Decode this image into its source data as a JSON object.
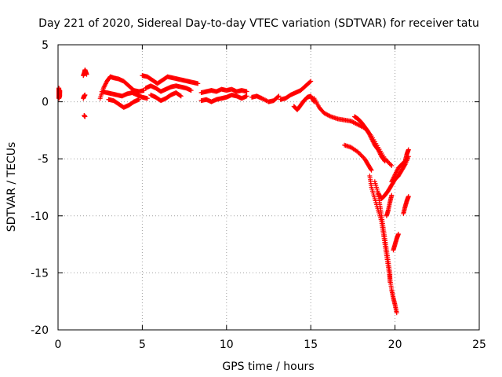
{
  "chart_data": {
    "type": "scatter",
    "title": "Day 221 of 2020, Sidereal Day-to-day VTEC variation (SDTVAR) for receiver tatu",
    "xlabel": "GPS time / hours",
    "ylabel": "SDTVAR / TECUs",
    "xlim": [
      0,
      25
    ],
    "ylim": [
      -20,
      5
    ],
    "xticks": [
      0,
      5,
      10,
      15,
      20,
      25
    ],
    "yticks": [
      5,
      0,
      -5,
      -10,
      -15,
      -20
    ],
    "grid": true,
    "marker": "plus",
    "series": [
      {
        "name": "SDTVAR",
        "color": "#ff0000",
        "segments": [
          [
            [
              0.05,
              1.2
            ],
            [
              0.05,
              0.9
            ],
            [
              0.05,
              0.6
            ],
            [
              0.05,
              0.3
            ],
            [
              0.1,
              0.5
            ],
            [
              0.1,
              0.8
            ],
            [
              0.1,
              1.0
            ]
          ],
          [
            [
              1.5,
              2.3
            ],
            [
              1.55,
              2.5
            ],
            [
              1.6,
              2.8
            ],
            [
              1.65,
              2.6
            ],
            [
              1.7,
              2.4
            ]
          ],
          [
            [
              1.5,
              0.3
            ],
            [
              1.55,
              0.5
            ],
            [
              1.6,
              0.6
            ]
          ],
          [
            [
              1.55,
              -1.2
            ],
            [
              1.6,
              -1.3
            ]
          ],
          [
            [
              2.5,
              0.3
            ],
            [
              2.7,
              1.2
            ],
            [
              2.9,
              1.8
            ],
            [
              3.1,
              2.2
            ],
            [
              3.3,
              2.1
            ],
            [
              3.6,
              2.0
            ],
            [
              3.9,
              1.8
            ],
            [
              4.2,
              1.4
            ],
            [
              4.5,
              1.0
            ],
            [
              4.8,
              0.9
            ],
            [
              5.1,
              1.0
            ]
          ],
          [
            [
              2.6,
              0.9
            ],
            [
              2.9,
              0.8
            ],
            [
              3.2,
              0.7
            ],
            [
              3.5,
              0.6
            ],
            [
              3.8,
              0.5
            ],
            [
              4.1,
              0.7
            ],
            [
              4.4,
              0.8
            ],
            [
              4.7,
              0.6
            ],
            [
              5.0,
              0.4
            ],
            [
              5.3,
              0.3
            ]
          ],
          [
            [
              3.0,
              0.2
            ],
            [
              3.3,
              0.1
            ],
            [
              3.6,
              -0.2
            ],
            [
              3.9,
              -0.5
            ],
            [
              4.2,
              -0.3
            ],
            [
              4.5,
              0.0
            ],
            [
              4.8,
              0.2
            ]
          ],
          [
            [
              5.0,
              2.3
            ],
            [
              5.3,
              2.2
            ],
            [
              5.6,
              1.9
            ],
            [
              5.9,
              1.6
            ],
            [
              6.2,
              1.9
            ],
            [
              6.5,
              2.2
            ],
            [
              6.8,
              2.1
            ],
            [
              7.1,
              2.0
            ],
            [
              7.4,
              1.9
            ],
            [
              7.7,
              1.8
            ],
            [
              8.0,
              1.7
            ],
            [
              8.3,
              1.6
            ]
          ],
          [
            [
              5.2,
              1.2
            ],
            [
              5.5,
              1.4
            ],
            [
              5.8,
              1.2
            ],
            [
              6.1,
              0.9
            ],
            [
              6.4,
              1.1
            ],
            [
              6.7,
              1.3
            ],
            [
              7.0,
              1.4
            ],
            [
              7.3,
              1.3
            ],
            [
              7.6,
              1.2
            ],
            [
              7.9,
              1.0
            ]
          ],
          [
            [
              5.5,
              0.6
            ],
            [
              5.8,
              0.4
            ],
            [
              6.1,
              0.1
            ],
            [
              6.4,
              0.3
            ],
            [
              6.7,
              0.6
            ],
            [
              7.0,
              0.8
            ],
            [
              7.3,
              0.5
            ]
          ],
          [
            [
              8.5,
              0.8
            ],
            [
              8.8,
              0.9
            ],
            [
              9.1,
              1.0
            ],
            [
              9.4,
              0.9
            ],
            [
              9.7,
              1.1
            ],
            [
              10.0,
              1.0
            ],
            [
              10.3,
              1.1
            ],
            [
              10.6,
              0.9
            ],
            [
              10.9,
              1.0
            ],
            [
              11.2,
              0.9
            ]
          ],
          [
            [
              8.5,
              0.1
            ],
            [
              8.8,
              0.2
            ],
            [
              9.1,
              0.0
            ],
            [
              9.4,
              0.2
            ],
            [
              9.7,
              0.3
            ],
            [
              10.0,
              0.4
            ],
            [
              10.3,
              0.6
            ],
            [
              10.6,
              0.5
            ],
            [
              10.9,
              0.3
            ],
            [
              11.2,
              0.5
            ]
          ],
          [
            [
              11.5,
              0.4
            ],
            [
              11.8,
              0.5
            ],
            [
              12.1,
              0.3
            ],
            [
              12.5,
              0.0
            ],
            [
              12.8,
              0.1
            ],
            [
              13.1,
              0.5
            ]
          ],
          [
            [
              13.2,
              0.2
            ],
            [
              13.5,
              0.3
            ],
            [
              13.8,
              0.6
            ],
            [
              14.1,
              0.8
            ],
            [
              14.4,
              1.0
            ],
            [
              14.7,
              1.4
            ],
            [
              15.0,
              1.8
            ]
          ],
          [
            [
              14.0,
              -0.4
            ],
            [
              14.2,
              -0.7
            ],
            [
              14.4,
              -0.3
            ],
            [
              14.6,
              0.1
            ],
            [
              14.8,
              0.4
            ],
            [
              15.0,
              0.5
            ],
            [
              15.2,
              0.0
            ]
          ],
          [
            [
              15.2,
              0.3
            ],
            [
              15.5,
              -0.5
            ],
            [
              15.8,
              -1.0
            ],
            [
              16.2,
              -1.3
            ],
            [
              16.6,
              -1.5
            ],
            [
              17.0,
              -1.6
            ],
            [
              17.4,
              -1.7
            ],
            [
              17.8,
              -2.0
            ],
            [
              18.2,
              -2.3
            ],
            [
              18.6,
              -3.0
            ],
            [
              19.0,
              -4.0
            ],
            [
              19.4,
              -5.0
            ],
            [
              19.8,
              -5.6
            ]
          ],
          [
            [
              17.6,
              -1.3
            ],
            [
              17.8,
              -1.5
            ],
            [
              18.0,
              -1.8
            ],
            [
              18.2,
              -2.2
            ],
            [
              18.4,
              -2.6
            ],
            [
              18.6,
              -3.2
            ],
            [
              18.8,
              -3.8
            ],
            [
              19.0,
              -4.2
            ],
            [
              19.2,
              -4.8
            ],
            [
              19.4,
              -5.2
            ]
          ],
          [
            [
              17.0,
              -3.8
            ],
            [
              17.4,
              -4.0
            ],
            [
              17.8,
              -4.4
            ],
            [
              18.2,
              -5.0
            ],
            [
              18.4,
              -5.5
            ],
            [
              18.6,
              -6.0
            ]
          ],
          [
            [
              18.5,
              -6.5
            ],
            [
              18.6,
              -7.5
            ],
            [
              18.8,
              -8.5
            ],
            [
              19.0,
              -9.5
            ],
            [
              19.2,
              -10.5
            ],
            [
              19.3,
              -11.5
            ],
            [
              19.4,
              -12.5
            ],
            [
              19.5,
              -13.5
            ],
            [
              19.6,
              -14.5
            ],
            [
              19.7,
              -15.5
            ],
            [
              19.8,
              -16.5
            ],
            [
              19.9,
              -17.2
            ],
            [
              20.0,
              -17.8
            ],
            [
              20.1,
              -18.5
            ]
          ],
          [
            [
              18.8,
              -7.0
            ],
            [
              19.0,
              -8.0
            ],
            [
              19.1,
              -9.0
            ],
            [
              19.2,
              -10.0
            ],
            [
              19.3,
              -11.0
            ],
            [
              19.4,
              -12.0
            ],
            [
              19.5,
              -13.0
            ],
            [
              19.6,
              -14.0
            ],
            [
              19.7,
              -15.0
            ],
            [
              19.7,
              -15.8
            ]
          ],
          [
            [
              19.0,
              -8.0
            ],
            [
              19.2,
              -8.5
            ],
            [
              19.4,
              -8.2
            ],
            [
              19.6,
              -7.8
            ],
            [
              19.8,
              -7.3
            ],
            [
              20.0,
              -6.8
            ],
            [
              20.2,
              -6.5
            ],
            [
              20.4,
              -6.0
            ],
            [
              20.6,
              -5.5
            ],
            [
              20.8,
              -4.8
            ]
          ],
          [
            [
              19.5,
              -10.0
            ],
            [
              19.6,
              -9.5
            ],
            [
              19.7,
              -8.8
            ],
            [
              19.8,
              -8.2
            ]
          ],
          [
            [
              19.8,
              -7.0
            ],
            [
              20.0,
              -6.4
            ],
            [
              20.2,
              -5.8
            ],
            [
              20.4,
              -5.5
            ],
            [
              20.6,
              -5.2
            ],
            [
              20.7,
              -4.6
            ],
            [
              20.8,
              -4.2
            ]
          ],
          [
            [
              19.9,
              -13.0
            ],
            [
              20.0,
              -12.5
            ],
            [
              20.1,
              -12.0
            ],
            [
              20.2,
              -11.6
            ]
          ],
          [
            [
              20.5,
              -9.8
            ],
            [
              20.6,
              -9.2
            ],
            [
              20.7,
              -8.7
            ],
            [
              20.8,
              -8.3
            ]
          ]
        ]
      }
    ]
  }
}
